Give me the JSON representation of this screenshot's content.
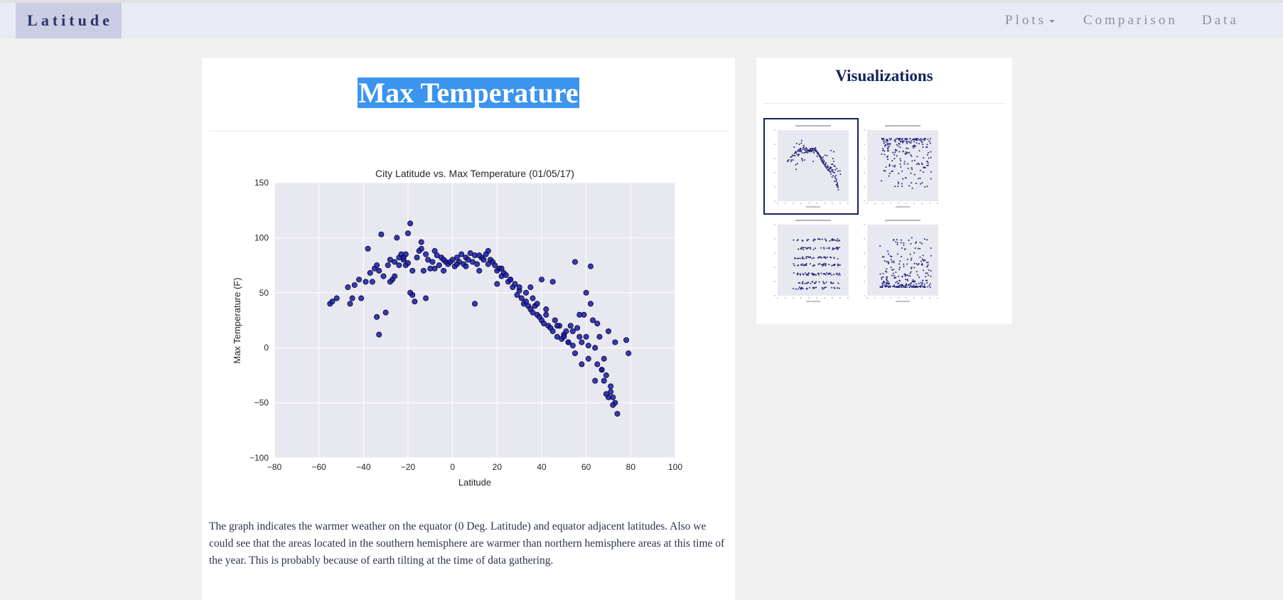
{
  "navbar": {
    "brand": "Latitude",
    "items": [
      {
        "label": "Plots",
        "has_dropdown": true
      },
      {
        "label": "Comparison"
      },
      {
        "label": "Data"
      }
    ]
  },
  "main": {
    "title": "Max Temperature",
    "description": "The graph indicates the warmer weather on the equator (0 Deg. Latitude) and equator adjacent latitudes. Also we could see that the areas located in the southern hemisphere are warmer than northern hemisphere areas at this time of the year. This is probably because of earth tilting at the time of data gathering."
  },
  "sidebar": {
    "title": "Visualizations",
    "thumbnails": [
      {
        "name": "latitude-vs-temperature-thumbnail",
        "active": true
      },
      {
        "name": "latitude-vs-humidity-thumbnail",
        "active": false
      },
      {
        "name": "latitude-vs-cloudiness-thumbnail",
        "active": false
      },
      {
        "name": "latitude-vs-wind-speed-thumbnail",
        "active": false
      }
    ]
  },
  "colors": {
    "accent": "#14235a",
    "selection": "#3b94ee",
    "plot_background": "#e8e8f0",
    "marker": "#1a1aa8"
  },
  "chart_data": {
    "type": "scatter",
    "title": "City Latitude vs. Max Temperature (01/05/17)",
    "xlabel": "Latitude",
    "ylabel": "Max Temperature (F)",
    "xlim": [
      -80,
      100
    ],
    "ylim": [
      -100,
      150
    ],
    "xticks": [
      "−80",
      "−60",
      "−40",
      "−20",
      "0",
      "20",
      "40",
      "60",
      "80",
      "100"
    ],
    "yticks": [
      "150",
      "100",
      "50",
      "0",
      "−50",
      "−100"
    ],
    "grid": true,
    "series": [
      {
        "x": [
          -55,
          -54,
          -52,
          -47,
          -46,
          -45,
          -44,
          -42,
          -41,
          -39,
          -38,
          -37,
          -36,
          -35,
          -34,
          -33,
          -32,
          -31,
          -30,
          -29,
          -28,
          -27,
          -26,
          -25,
          -24,
          -23,
          -22,
          -21,
          -20,
          -19,
          -18,
          -17,
          -16,
          -15,
          -14,
          -13,
          -12,
          -11,
          -10,
          -9,
          -8,
          -7,
          -6,
          -5,
          -4,
          -3,
          -2,
          -1,
          0,
          1,
          2,
          3,
          4,
          5,
          6,
          7,
          8,
          9,
          10,
          11,
          12,
          13,
          14,
          15,
          16,
          17,
          18,
          19,
          20,
          21,
          22,
          23,
          24,
          25,
          26,
          27,
          28,
          29,
          30,
          31,
          32,
          33,
          34,
          35,
          36,
          37,
          38,
          39,
          40,
          41,
          42,
          43,
          44,
          45,
          46,
          47,
          48,
          49,
          50,
          51,
          52,
          53,
          54,
          55,
          56,
          57,
          58,
          59,
          60,
          61,
          62,
          63,
          64,
          65,
          66,
          67,
          68,
          69,
          70,
          71,
          72,
          73,
          74,
          78,
          79,
          -34,
          -26,
          -21,
          -20,
          -19,
          -12,
          10,
          20,
          35,
          40,
          45,
          54,
          57,
          60,
          62,
          65,
          68,
          70,
          71,
          72,
          -33,
          -28,
          -24,
          -22,
          -18,
          -14,
          -8,
          -4,
          2,
          6,
          12,
          16,
          22,
          26,
          30,
          33,
          36,
          38,
          42,
          47,
          50,
          52,
          55,
          58,
          61,
          64,
          67,
          69,
          73
        ],
        "y": [
          40,
          42,
          45,
          55,
          40,
          45,
          57,
          62,
          45,
          60,
          90,
          68,
          60,
          72,
          75,
          70,
          103,
          65,
          32,
          75,
          80,
          62,
          78,
          100,
          82,
          85,
          80,
          75,
          104,
          113,
          48,
          42,
          82,
          88,
          96,
          70,
          85,
          80,
          72,
          78,
          88,
          84,
          75,
          82,
          70,
          78,
          76,
          78,
          80,
          74,
          82,
          78,
          85,
          76,
          82,
          80,
          86,
          78,
          84,
          76,
          70,
          82,
          80,
          85,
          76,
          80,
          78,
          75,
          70,
          72,
          65,
          68,
          66,
          60,
          62,
          55,
          58,
          48,
          52,
          45,
          40,
          42,
          38,
          35,
          32,
          38,
          30,
          28,
          25,
          22,
          30,
          20,
          18,
          15,
          25,
          10,
          20,
          8,
          12,
          15,
          5,
          20,
          2,
          78,
          18,
          10,
          5,
          30,
          50,
          -10,
          40,
          25,
          0,
          -15,
          10,
          -20,
          -30,
          -25,
          15,
          -40,
          -45,
          -50,
          -60,
          7,
          -5,
          28,
          65,
          85,
          77,
          50,
          45,
          40,
          58,
          55,
          62,
          60,
          15,
          30,
          10,
          74,
          22,
          -10,
          -45,
          -35,
          -52,
          12,
          60,
          75,
          82,
          70,
          90,
          72,
          80,
          76,
          74,
          84,
          88,
          72,
          62,
          55,
          50,
          45,
          40,
          35,
          20,
          10,
          5,
          -5,
          -15,
          2,
          -30,
          -20,
          -42,
          5
        ]
      }
    ]
  }
}
